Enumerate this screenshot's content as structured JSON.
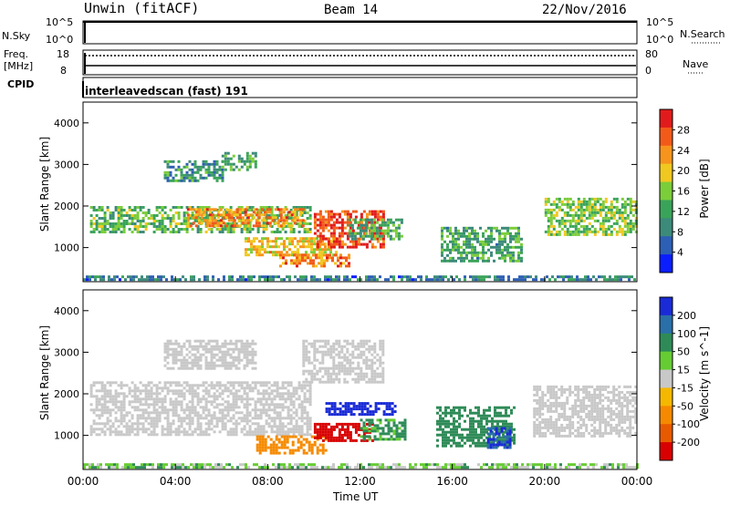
{
  "header": {
    "station": "Unwin (fitACF)",
    "beam": "Beam 14",
    "date": "22/Nov/2016"
  },
  "panels": {
    "nsky": {
      "label": "N.Sky",
      "ticks": [
        "10^5",
        "10^0"
      ],
      "right_label": "N.Search",
      "right_ticks": [
        "10^5",
        "10^0"
      ]
    },
    "freq": {
      "label_line1": "Freq.",
      "label_line2": "[MHz]",
      "ticks": [
        "18",
        "8"
      ],
      "right_label": "Nave",
      "right_ticks": [
        "80",
        "0"
      ]
    },
    "cpid": {
      "label": "CPID",
      "text": "interleavedscan (fast) 191"
    }
  },
  "chart_data": [
    {
      "type": "heatmap",
      "quantity": "Power",
      "ylabel": "Slant Range [km]",
      "xlabel": "Time UT",
      "y_ticks": [
        1000,
        2000,
        3000,
        4000
      ],
      "ylim": [
        180,
        4500
      ],
      "x_ticks": [
        "00:00",
        "04:00",
        "08:00",
        "12:00",
        "16:00",
        "20:00",
        "00:00"
      ],
      "xlim_hours": [
        0,
        24
      ],
      "colorbar": {
        "label": "Power [dB]",
        "ticks": [
          "4",
          "8",
          "12",
          "16",
          "20",
          "24",
          "28"
        ],
        "colors": [
          "#0a1eff",
          "#2d5fb4",
          "#3c8a7a",
          "#3aa35a",
          "#7ccd3a",
          "#f0c820",
          "#f7941d",
          "#f25a1a",
          "#e11b1b"
        ]
      },
      "regions": [
        {
          "t0": 0.3,
          "t1": 9.8,
          "r0": 1350,
          "r1": 2000,
          "value": 14
        },
        {
          "t0": 4.5,
          "t1": 9.5,
          "r0": 1500,
          "r1": 1950,
          "value": 24
        },
        {
          "t0": 7.0,
          "t1": 11.0,
          "r0": 800,
          "r1": 1250,
          "value": 20
        },
        {
          "t0": 8.5,
          "t1": 11.5,
          "r0": 550,
          "r1": 850,
          "value": 24
        },
        {
          "t0": 10.0,
          "t1": 13.0,
          "r0": 1000,
          "r1": 1900,
          "value": 28
        },
        {
          "t0": 11.5,
          "t1": 13.8,
          "r0": 1200,
          "r1": 1700,
          "value": 12
        },
        {
          "t0": 15.5,
          "t1": 19.0,
          "r0": 700,
          "r1": 1500,
          "value": 12
        },
        {
          "t0": 20.0,
          "t1": 24.0,
          "r0": 1300,
          "r1": 2200,
          "value": 16
        },
        {
          "t0": 3.5,
          "t1": 6.0,
          "r0": 2600,
          "r1": 3100,
          "value": 10
        },
        {
          "t0": 6.0,
          "t1": 7.5,
          "r0": 2900,
          "r1": 3300,
          "value": 12
        },
        {
          "t0": 0.0,
          "t1": 24.0,
          "r0": 200,
          "r1": 330,
          "value": 8
        }
      ]
    },
    {
      "type": "heatmap",
      "quantity": "Velocity",
      "ylabel": "Slant Range [km]",
      "xlabel": "Time UT",
      "y_ticks": [
        1000,
        2000,
        3000,
        4000
      ],
      "ylim": [
        180,
        4500
      ],
      "x_ticks": [
        "00:00",
        "04:00",
        "08:00",
        "12:00",
        "16:00",
        "20:00",
        "00:00"
      ],
      "xlim_hours": [
        0,
        24
      ],
      "colorbar": {
        "label": "Velocity [m s^-1]",
        "ticks": [
          "200",
          "100",
          "50",
          "15",
          "-15",
          "-50",
          "-100",
          "-200"
        ],
        "colors": [
          "#1a2bd6",
          "#2a6fa8",
          "#2e8b57",
          "#66cc33",
          "#c8c8c8",
          "#f5b800",
          "#f58a00",
          "#e85a00",
          "#d80000"
        ]
      },
      "regions": [
        {
          "t0": 0.3,
          "t1": 9.8,
          "r0": 1000,
          "r1": 2300,
          "value": 0
        },
        {
          "t0": 7.5,
          "t1": 10.5,
          "r0": 550,
          "r1": 1000,
          "value": -50
        },
        {
          "t0": 10.0,
          "t1": 12.5,
          "r0": 900,
          "r1": 1300,
          "value": -200
        },
        {
          "t0": 10.5,
          "t1": 13.5,
          "r0": 1500,
          "r1": 1800,
          "value": 200
        },
        {
          "t0": 12.0,
          "t1": 14.0,
          "r0": 900,
          "r1": 1400,
          "value": 40
        },
        {
          "t0": 15.3,
          "t1": 18.7,
          "r0": 750,
          "r1": 1700,
          "value": 60
        },
        {
          "t0": 17.5,
          "t1": 18.5,
          "r0": 700,
          "r1": 1200,
          "value": 150
        },
        {
          "t0": 19.5,
          "t1": 24.0,
          "r0": 1000,
          "r1": 2200,
          "value": 0
        },
        {
          "t0": 3.5,
          "t1": 7.5,
          "r0": 2600,
          "r1": 3300,
          "value": 0
        },
        {
          "t0": 9.5,
          "t1": 13.0,
          "r0": 2300,
          "r1": 3300,
          "value": 0
        },
        {
          "t0": 0.0,
          "t1": 24.0,
          "r0": 200,
          "r1": 330,
          "value": 20
        }
      ]
    }
  ]
}
